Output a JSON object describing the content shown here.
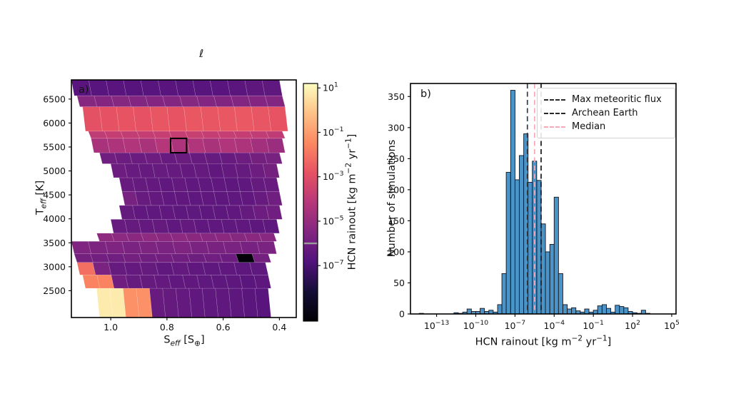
{
  "figure": {
    "title_fragment": "ℓ",
    "panel_a_label": "a)",
    "panel_b_label": "b)"
  },
  "chart_data": [
    {
      "type": "heatmap",
      "panel": "a",
      "xlabel": {
        "base": "S",
        "sub": "eff",
        "open": " [S",
        "sub2": "⊕",
        "close": "]"
      },
      "ylabel": {
        "base": "T",
        "sub": "eff",
        "rest": " [K]"
      },
      "xlim": [
        1.14,
        0.34
      ],
      "ylim": [
        1940,
        6900
      ],
      "xticks": [
        "1.0",
        "0.8",
        "0.6",
        "0.4"
      ],
      "xtick_values": [
        1.0,
        0.8,
        0.6,
        0.4
      ],
      "yticks": [
        2500,
        3000,
        3500,
        4000,
        4500,
        5000,
        5500,
        6000,
        6500
      ],
      "value_units": "kg m-2 yr-1 (log10)",
      "rows": [
        {
          "t": [
            1940,
            2550
          ],
          "s": [
            1.05,
            0.44
          ],
          "v": [
            0.8,
            0.8,
            -1.3,
            -1.3,
            -6.2,
            -6.3,
            -6.35,
            -6.4,
            -6.45,
            -6.4,
            -6.5,
            -6.55,
            -6.6
          ]
        },
        {
          "t": [
            2550,
            2830
          ],
          "s": [
            1.1,
            0.44
          ],
          "v": [
            -1.6,
            -1.6,
            -6.0,
            -6.25,
            -6.3,
            -6.35,
            -6.4,
            -6.4,
            -6.45,
            -6.5,
            -6.5,
            -6.55,
            -6.5
          ]
        },
        {
          "t": [
            2830,
            3090
          ],
          "s": [
            1.12,
            0.45
          ],
          "v": [
            -2.1,
            -5.7,
            -6.3,
            -6.35,
            -6.3,
            -6.4,
            -6.35,
            -6.4,
            -6.45,
            -6.4,
            -6.5,
            -6.45
          ]
        },
        {
          "t": [
            3090,
            3270
          ],
          "s": [
            1.13,
            0.44
          ],
          "v": [
            -5.9,
            -5.95,
            -6.0,
            -5.9,
            -6.0,
            -5.95,
            -6.0,
            -6.05,
            -6.0,
            -6.1,
            -9.3,
            -5.9
          ]
        },
        {
          "t": [
            3270,
            3530
          ],
          "s": [
            1.14,
            0.42
          ],
          "v": [
            -5.6,
            -5.65,
            -5.6,
            -5.7,
            -5.65,
            -5.7,
            -5.6,
            -5.7,
            -5.75,
            -5.7,
            -5.8,
            -5.7
          ]
        },
        {
          "t": [
            3530,
            3700
          ],
          "s": [
            1.05,
            0.42
          ],
          "v": [
            -5.2,
            -5.25,
            -5.3,
            -5.2,
            -5.3,
            -5.25,
            -5.3,
            -5.35,
            -5.3,
            -5.4,
            -5.3,
            -5.35
          ]
        },
        {
          "t": [
            3700,
            3990
          ],
          "s": [
            1.0,
            0.41
          ],
          "v": [
            -6.2,
            -6.3,
            -6.35,
            -6.3,
            -6.4,
            -6.35,
            -6.4,
            -6.4,
            -6.45,
            -6.4,
            -6.5,
            -6.45
          ]
        },
        {
          "t": [
            3990,
            4280
          ],
          "s": [
            0.97,
            0.4
          ],
          "v": [
            -6.3,
            -6.4,
            -6.45,
            -6.4,
            -6.5,
            -6.45,
            -6.5,
            -6.5,
            -6.4,
            -6.3,
            -6.1,
            -6.0
          ]
        },
        {
          "t": [
            4280,
            4570
          ],
          "s": [
            0.96,
            0.4
          ],
          "v": [
            -5.8,
            -6.2,
            -6.35,
            -6.4,
            -6.4,
            -6.45,
            -6.4,
            -6.5,
            -6.45,
            -6.4,
            -6.2,
            -6.0
          ]
        },
        {
          "t": [
            4570,
            4860
          ],
          "s": [
            0.97,
            0.41
          ],
          "v": [
            -6.2,
            -6.3,
            -6.35,
            -6.4,
            -6.35,
            -6.4,
            -6.45,
            -6.4,
            -6.5,
            -6.45,
            -6.3,
            -6.2
          ]
        },
        {
          "t": [
            4860,
            5150
          ],
          "s": [
            1.0,
            0.41
          ],
          "v": [
            -6.1,
            -6.2,
            -6.3,
            -6.25,
            -6.3,
            -6.35,
            -6.3,
            -6.4,
            -6.35,
            -6.3,
            -6.1,
            -5.9
          ]
        },
        {
          "t": [
            5150,
            5380
          ],
          "s": [
            1.04,
            0.4
          ],
          "v": [
            -6.0,
            -6.1,
            -6.15,
            -6.1,
            -6.2,
            -6.15,
            -6.2,
            -6.25,
            -6.2,
            -6.1,
            -5.9,
            -5.8
          ]
        },
        {
          "t": [
            5380,
            5680
          ],
          "s": [
            1.07,
            0.39
          ],
          "v": [
            -4.5,
            -4.4,
            -4.3,
            -4.5,
            -4.2,
            -4.4,
            -4.3,
            -4.5,
            -4.3,
            -4.4,
            -4.7,
            -4.9
          ]
        },
        {
          "t": [
            5680,
            5830
          ],
          "s": [
            1.08,
            0.39
          ],
          "v": [
            -3.9,
            -3.8,
            -3.85,
            -3.8,
            -3.75,
            -3.8,
            -3.7,
            -3.8,
            -3.75,
            -3.8,
            -3.9,
            -3.95
          ]
        },
        {
          "t": [
            5830,
            6340
          ],
          "s": [
            1.1,
            0.38
          ],
          "v": [
            -2.9,
            -2.85,
            -2.8,
            -2.85,
            -2.75,
            -2.8,
            -2.7,
            -2.75,
            -2.7,
            -2.65,
            -2.75,
            -2.8
          ]
        },
        {
          "t": [
            6340,
            6570
          ],
          "s": [
            1.12,
            0.39
          ],
          "v": [
            -5.4,
            -5.45,
            -5.4,
            -5.5,
            -5.45,
            -5.5,
            -5.4,
            -5.5,
            -5.55,
            -5.5,
            -5.45,
            -5.5
          ]
        },
        {
          "t": [
            6570,
            6900
          ],
          "s": [
            1.14,
            0.4
          ],
          "v": [
            -6.6,
            -6.65,
            -6.6,
            -6.7,
            -6.65,
            -6.6,
            -6.7,
            -6.65,
            -6.6,
            -6.55,
            -6.5,
            -6.45
          ]
        }
      ],
      "highlight_box": {
        "s": [
          0.787,
          0.73
        ],
        "t": [
          5380,
          5680
        ],
        "color": "#000000"
      },
      "colormap": {
        "name": "magma",
        "vmin_log": -9.5,
        "vmax_log": 1.2,
        "anchors": [
          [
            0.0,
            "#000004"
          ],
          [
            0.125,
            "#140e36"
          ],
          [
            0.25,
            "#51127c"
          ],
          [
            0.375,
            "#832681"
          ],
          [
            0.5,
            "#b73779"
          ],
          [
            0.625,
            "#e75263"
          ],
          [
            0.75,
            "#fc8961"
          ],
          [
            0.875,
            "#fec287"
          ],
          [
            1.0,
            "#fcfdbf"
          ]
        ]
      },
      "colorbar": {
        "tick_exponents": [
          1,
          -1,
          -3,
          -5,
          -7
        ],
        "marker_log": -6.0,
        "marker_color": "#9a9a9a",
        "label": {
          "p1": "HCN rainout [kg m",
          "s1": "−2",
          "p2": " yr",
          "s2": "−1",
          "p3": "]"
        }
      }
    },
    {
      "type": "histogram",
      "panel": "b",
      "xlabel": {
        "p1": "HCN rainout [kg m",
        "s1": "−2",
        "p2": " yr",
        "s2": "−1",
        "p3": "]"
      },
      "ylabel": "Number of simulations",
      "xlim_log": [
        -15,
        5.33
      ],
      "ylim": [
        0,
        371
      ],
      "xticks_exponents": [
        -13,
        -10,
        -7,
        -4,
        -1,
        2,
        5
      ],
      "yticks": [
        0,
        50,
        100,
        150,
        200,
        250,
        300,
        350
      ],
      "bin_width_log": 0.3333,
      "bar_color": "#4a94c8",
      "bar_edge_color": "#15151f",
      "bins": [
        [
          -14.33,
          1
        ],
        [
          -11.67,
          2
        ],
        [
          -11.33,
          1
        ],
        [
          -11.0,
          3
        ],
        [
          -10.67,
          8
        ],
        [
          -10.33,
          4
        ],
        [
          -10.0,
          4
        ],
        [
          -9.67,
          9
        ],
        [
          -9.33,
          4
        ],
        [
          -9.0,
          6
        ],
        [
          -8.67,
          3
        ],
        [
          -8.33,
          15
        ],
        [
          -8.0,
          65
        ],
        [
          -7.67,
          228
        ],
        [
          -7.33,
          360
        ],
        [
          -7.0,
          216
        ],
        [
          -6.67,
          255
        ],
        [
          -6.33,
          290
        ],
        [
          -6.0,
          212
        ],
        [
          -5.67,
          246
        ],
        [
          -5.33,
          215
        ],
        [
          -5.0,
          145
        ],
        [
          -4.67,
          100
        ],
        [
          -4.33,
          112
        ],
        [
          -4.0,
          188
        ],
        [
          -3.67,
          65
        ],
        [
          -3.33,
          15
        ],
        [
          -3.0,
          8
        ],
        [
          -2.67,
          10
        ],
        [
          -2.33,
          5
        ],
        [
          -2.0,
          3
        ],
        [
          -1.67,
          8
        ],
        [
          -1.33,
          3
        ],
        [
          -1.0,
          6
        ],
        [
          -0.67,
          13
        ],
        [
          -0.33,
          15
        ],
        [
          0.0,
          9
        ],
        [
          0.33,
          3
        ],
        [
          0.67,
          14
        ],
        [
          1.0,
          12
        ],
        [
          1.33,
          10
        ],
        [
          1.67,
          4
        ],
        [
          2.0,
          2
        ],
        [
          2.33,
          1
        ],
        [
          2.67,
          6
        ],
        [
          3.0,
          1
        ]
      ],
      "vlines": [
        {
          "name": "max-meteoritic-flux",
          "log": -6.05,
          "approx_value": "8.9e-7",
          "color": "#3a3b42"
        },
        {
          "name": "archean-earth",
          "log": -5.0,
          "approx_value": "1.0e-5",
          "color": "#17171c"
        },
        {
          "name": "median",
          "log": -5.5,
          "approx_value": "3.2e-6",
          "color": "#f8a9b7"
        }
      ],
      "legend": [
        {
          "label": "Max meteoritic flux",
          "swatch_color": "#2a2a2a"
        },
        {
          "label": "Archean Earth",
          "swatch_color": "#2a2a2a"
        },
        {
          "label": "Median",
          "swatch_color": "#f8a9b7"
        }
      ]
    }
  ]
}
